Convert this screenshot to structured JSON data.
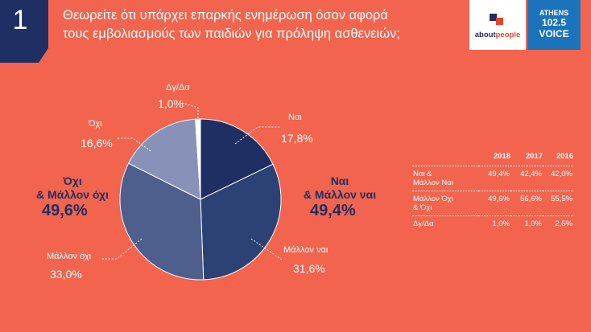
{
  "header": {
    "number": "1",
    "title_line1": "Θεωρείτε ότι υπάρχει επαρκής ενημέρωση όσον αφορά",
    "title_line2": "τους εμβολιασμούς των παιδιών για πρόληψη ασθενειών;",
    "logo_about_a": "about",
    "logo_about_b": "people",
    "logo_voice_1": "ATHENS",
    "logo_voice_2": "102.5",
    "logo_voice_3": "VOICE"
  },
  "chart_data": {
    "type": "pie",
    "slices": [
      {
        "label": "Ναι",
        "value": 17.8,
        "value_label": "17,8%",
        "color": "#1f2f63"
      },
      {
        "label": "Μάλλον ναι",
        "value": 31.6,
        "value_label": "31,6%",
        "color": "#2d4274"
      },
      {
        "label": "Μάλλον όχι",
        "value": 33.0,
        "value_label": "33,0%",
        "color": "#4e5e8d"
      },
      {
        "label": "Όχι",
        "value": 16.6,
        "value_label": "16,6%",
        "color": "#8892b8"
      },
      {
        "label": "Δγ/Δα",
        "value": 1.0,
        "value_label": "1,0%",
        "color": "#ffffff"
      }
    ],
    "groups": [
      {
        "line1": "Ναι",
        "line2": "& Μάλλον ναι",
        "value_label": "49,4%"
      },
      {
        "line1": "Όχι",
        "line2": "& Μάλλον όχι",
        "value_label": "49,6%"
      }
    ]
  },
  "table": {
    "headers": [
      "",
      "2018",
      "2017",
      "2016"
    ],
    "rows": [
      {
        "label1": "Ναι &",
        "label2": "Μάλλον Ναι",
        "values": [
          "49,4%",
          "42,4%",
          "42,0%"
        ]
      },
      {
        "label1": "Μάλλον Όχι",
        "label2": "& Όχι",
        "values": [
          "49,6%",
          "56,6%",
          "55,5%"
        ]
      },
      {
        "label1": "Δγ/Δα",
        "label2": "",
        "values": [
          "1,0%",
          "1,0%",
          "2,5%"
        ]
      }
    ]
  }
}
